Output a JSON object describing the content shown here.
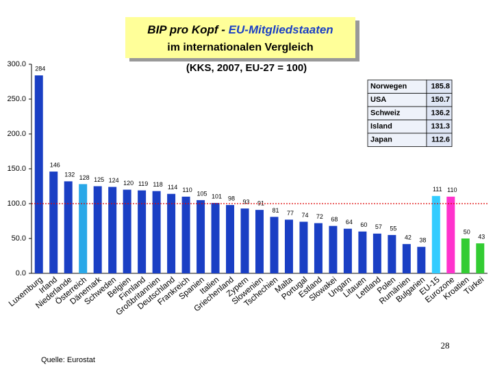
{
  "chart_data": {
    "type": "bar",
    "title": "BIP pro Kopf -",
    "title_highlight": "EU-Mitgliedstaaten",
    "title_line2": "im internationalen Vergleich",
    "subtitle": "(KKS, 2007, EU-27 = 100)",
    "categories": [
      "Luxemburg",
      "Irland",
      "Niederlande",
      "Österreich",
      "Dänemark",
      "Schweden",
      "Belgien",
      "Finnland",
      "Großbritannien",
      "Deutschland",
      "Frankreich",
      "Spanien",
      "Italien",
      "Griechenland",
      "Zypern",
      "Slowenien",
      "Tschechien",
      "Malta",
      "Portugal",
      "Estland",
      "Slowakei",
      "Ungarn",
      "Litauen",
      "Lettland",
      "Polen",
      "Rumänien",
      "Bulgarien",
      "EU-15",
      "Eurozone",
      "Kroatien",
      "Türkei"
    ],
    "values": [
      284,
      146,
      132,
      128,
      125,
      124,
      120,
      119,
      118,
      114,
      110,
      105,
      101,
      98,
      93,
      91,
      81,
      77,
      74,
      72,
      68,
      64,
      60,
      57,
      55,
      42,
      38,
      111,
      110,
      50,
      43
    ],
    "colors": [
      "#1a3fc4",
      "#1a3fc4",
      "#1a3fc4",
      "#29a8e8",
      "#1a3fc4",
      "#1a3fc4",
      "#1a3fc4",
      "#1a3fc4",
      "#1a3fc4",
      "#1a3fc4",
      "#1a3fc4",
      "#1a3fc4",
      "#1a3fc4",
      "#1a3fc4",
      "#1a3fc4",
      "#1a3fc4",
      "#1a3fc4",
      "#1a3fc4",
      "#1a3fc4",
      "#1a3fc4",
      "#1a3fc4",
      "#1a3fc4",
      "#1a3fc4",
      "#1a3fc4",
      "#1a3fc4",
      "#1a3fc4",
      "#1a3fc4",
      "#33ccff",
      "#ff33cc",
      "#33cc33",
      "#33cc33"
    ],
    "ylim": [
      0,
      300
    ],
    "yticks": [
      {
        "value": 0,
        "label": "0.0"
      },
      {
        "value": 50,
        "label": "50.0"
      },
      {
        "value": 100,
        "label": "100.0"
      },
      {
        "value": 150,
        "label": "150.0"
      },
      {
        "value": 200,
        "label": "200.0"
      },
      {
        "value": 250,
        "label": "250.0"
      },
      {
        "value": 300,
        "label": "300.0"
      }
    ],
    "reference_line": {
      "value": 100,
      "color": "#dd0000"
    },
    "inset_table": {
      "rows": [
        [
          "Norwegen",
          185.8
        ],
        [
          "USA",
          150.7
        ],
        [
          "Schweiz",
          136.2
        ],
        [
          "Island",
          131.3
        ],
        [
          "Japan",
          112.6
        ]
      ]
    },
    "page_number": "28",
    "source": "Quelle: Eurostat"
  }
}
